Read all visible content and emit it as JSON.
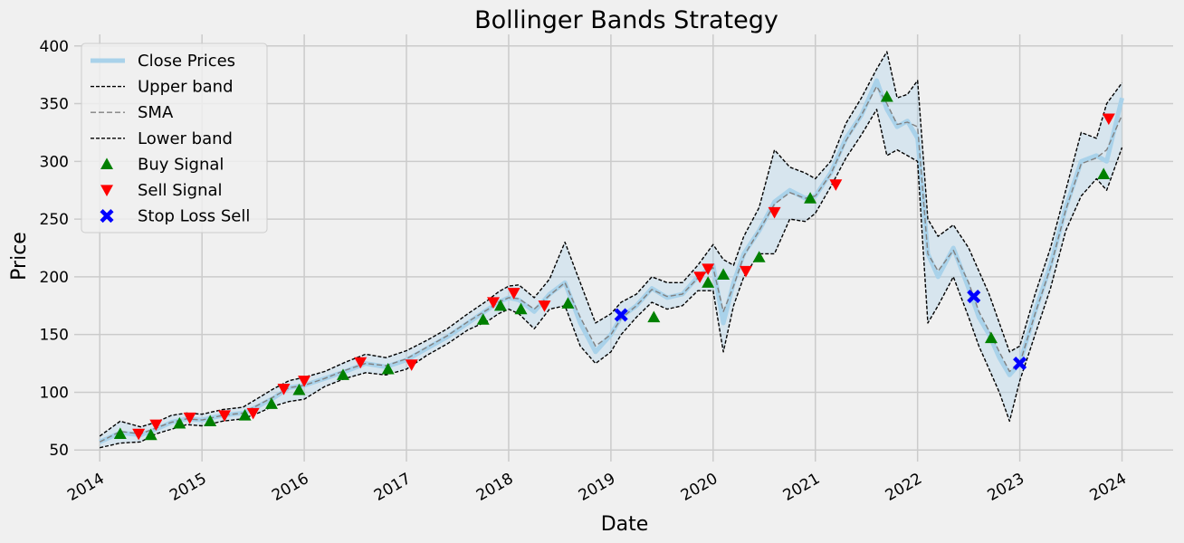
{
  "chart_data": {
    "type": "line",
    "title": "Bollinger Bands Strategy",
    "xlabel": "Date",
    "ylabel": "Price",
    "xlim": [
      2013.75,
      2024.5
    ],
    "ylim": [
      40,
      410
    ],
    "grid": true,
    "legend_position": "top-left",
    "x_ticks": [
      2014,
      2015,
      2016,
      2017,
      2018,
      2019,
      2020,
      2021,
      2022,
      2023,
      2024
    ],
    "x_tick_labels": [
      "2014",
      "2015",
      "2016",
      "2017",
      "2018",
      "2019",
      "2020",
      "2021",
      "2022",
      "2023",
      "2024"
    ],
    "y_ticks": [
      50,
      100,
      150,
      200,
      250,
      300,
      350,
      400
    ],
    "y_tick_labels": [
      "50",
      "100",
      "150",
      "200",
      "250",
      "300",
      "350",
      "400"
    ],
    "series": [
      {
        "name": "Close Prices",
        "color": "#a9d2ea",
        "x": [
          2014.0,
          2014.2,
          2014.4,
          2014.55,
          2014.7,
          2014.85,
          2015.0,
          2015.2,
          2015.4,
          2015.55,
          2015.7,
          2015.85,
          2016.0,
          2016.2,
          2016.4,
          2016.6,
          2016.8,
          2017.0,
          2017.2,
          2017.4,
          2017.6,
          2017.8,
          2017.9,
          2018.0,
          2018.1,
          2018.25,
          2018.4,
          2018.55,
          2018.7,
          2018.85,
          2019.0,
          2019.1,
          2019.25,
          2019.4,
          2019.55,
          2019.7,
          2019.85,
          2020.0,
          2020.1,
          2020.2,
          2020.3,
          2020.45,
          2020.6,
          2020.75,
          2020.9,
          2021.0,
          2021.15,
          2021.3,
          2021.45,
          2021.6,
          2021.7,
          2021.8,
          2021.9,
          2022.0,
          2022.1,
          2022.2,
          2022.35,
          2022.5,
          2022.6,
          2022.7,
          2022.8,
          2022.9,
          2023.0,
          2023.15,
          2023.3,
          2023.45,
          2023.6,
          2023.75,
          2023.85,
          2024.0
        ],
        "y": [
          57,
          65,
          63,
          68,
          74,
          77,
          76,
          80,
          82,
          88,
          95,
          104,
          106,
          112,
          118,
          125,
          122,
          128,
          138,
          148,
          160,
          172,
          178,
          182,
          180,
          170,
          185,
          195,
          160,
          135,
          150,
          165,
          175,
          190,
          182,
          185,
          200,
          210,
          160,
          195,
          220,
          240,
          265,
          275,
          268,
          270,
          290,
          320,
          340,
          370,
          345,
          330,
          335,
          320,
          220,
          200,
          225,
          190,
          165,
          150,
          130,
          115,
          125,
          170,
          210,
          260,
          300,
          305,
          300,
          355
        ]
      },
      {
        "name": "Upper band",
        "color": "#000000",
        "x": [
          2014.0,
          2014.2,
          2014.4,
          2014.55,
          2014.7,
          2014.85,
          2015.0,
          2015.2,
          2015.4,
          2015.55,
          2015.7,
          2015.85,
          2016.0,
          2016.2,
          2016.4,
          2016.6,
          2016.8,
          2017.0,
          2017.2,
          2017.4,
          2017.6,
          2017.8,
          2017.9,
          2018.0,
          2018.1,
          2018.25,
          2018.4,
          2018.55,
          2018.7,
          2018.85,
          2019.0,
          2019.1,
          2019.25,
          2019.4,
          2019.55,
          2019.7,
          2019.85,
          2020.0,
          2020.1,
          2020.2,
          2020.3,
          2020.45,
          2020.6,
          2020.75,
          2020.9,
          2021.0,
          2021.15,
          2021.3,
          2021.45,
          2021.6,
          2021.7,
          2021.8,
          2021.9,
          2022.0,
          2022.1,
          2022.2,
          2022.35,
          2022.5,
          2022.6,
          2022.7,
          2022.8,
          2022.9,
          2023.0,
          2023.15,
          2023.3,
          2023.45,
          2023.6,
          2023.75,
          2023.85,
          2024.0
        ],
        "y": [
          62,
          75,
          70,
          74,
          80,
          82,
          81,
          85,
          87,
          95,
          103,
          110,
          113,
          118,
          126,
          133,
          130,
          136,
          145,
          155,
          168,
          180,
          187,
          192,
          193,
          182,
          198,
          230,
          195,
          160,
          168,
          178,
          185,
          200,
          195,
          195,
          210,
          228,
          215,
          210,
          235,
          260,
          310,
          295,
          290,
          285,
          300,
          333,
          355,
          380,
          395,
          355,
          358,
          370,
          250,
          235,
          245,
          225,
          205,
          185,
          160,
          135,
          140,
          185,
          225,
          275,
          325,
          320,
          350,
          368
        ]
      },
      {
        "name": "SMA",
        "color": "#808080",
        "x": [
          2014.0,
          2014.2,
          2014.4,
          2014.55,
          2014.7,
          2014.85,
          2015.0,
          2015.2,
          2015.4,
          2015.55,
          2015.7,
          2015.85,
          2016.0,
          2016.2,
          2016.4,
          2016.6,
          2016.8,
          2017.0,
          2017.2,
          2017.4,
          2017.6,
          2017.8,
          2017.9,
          2018.0,
          2018.1,
          2018.25,
          2018.4,
          2018.55,
          2018.7,
          2018.85,
          2019.0,
          2019.1,
          2019.25,
          2019.4,
          2019.55,
          2019.7,
          2019.85,
          2020.0,
          2020.1,
          2020.2,
          2020.3,
          2020.45,
          2020.6,
          2020.75,
          2020.9,
          2021.0,
          2021.15,
          2021.3,
          2021.45,
          2021.6,
          2021.7,
          2021.8,
          2021.9,
          2022.0,
          2022.1,
          2022.2,
          2022.35,
          2022.5,
          2022.6,
          2022.7,
          2022.8,
          2022.9,
          2023.0,
          2023.15,
          2023.3,
          2023.45,
          2023.6,
          2023.75,
          2023.85,
          2024.0
        ],
        "y": [
          57,
          66,
          64,
          69,
          74,
          77,
          76,
          80,
          82,
          89,
          96,
          104,
          106,
          112,
          119,
          125,
          123,
          129,
          139,
          149,
          161,
          172,
          178,
          182,
          181,
          172,
          184,
          195,
          165,
          140,
          150,
          164,
          175,
          189,
          183,
          185,
          199,
          208,
          170,
          192,
          218,
          240,
          263,
          273,
          268,
          270,
          289,
          318,
          340,
          365,
          350,
          332,
          334,
          330,
          220,
          205,
          223,
          195,
          170,
          153,
          135,
          118,
          125,
          168,
          208,
          258,
          298,
          303,
          310,
          340
        ]
      },
      {
        "name": "Lower band",
        "color": "#000000",
        "x": [
          2014.0,
          2014.2,
          2014.4,
          2014.55,
          2014.7,
          2014.85,
          2015.0,
          2015.2,
          2015.4,
          2015.55,
          2015.7,
          2015.85,
          2016.0,
          2016.2,
          2016.4,
          2016.6,
          2016.8,
          2017.0,
          2017.2,
          2017.4,
          2017.6,
          2017.8,
          2017.9,
          2018.0,
          2018.1,
          2018.25,
          2018.4,
          2018.55,
          2018.7,
          2018.85,
          2019.0,
          2019.1,
          2019.25,
          2019.4,
          2019.55,
          2019.7,
          2019.85,
          2020.0,
          2020.1,
          2020.2,
          2020.3,
          2020.45,
          2020.6,
          2020.75,
          2020.9,
          2021.0,
          2021.15,
          2021.3,
          2021.45,
          2021.6,
          2021.7,
          2021.8,
          2021.9,
          2022.0,
          2022.1,
          2022.2,
          2022.35,
          2022.5,
          2022.6,
          2022.7,
          2022.8,
          2022.9,
          2023.0,
          2023.15,
          2023.3,
          2023.45,
          2023.6,
          2023.75,
          2023.85,
          2024.0
        ],
        "y": [
          52,
          56,
          57,
          64,
          68,
          72,
          71,
          75,
          77,
          82,
          88,
          92,
          94,
          105,
          112,
          117,
          115,
          120,
          132,
          142,
          154,
          162,
          168,
          172,
          168,
          155,
          172,
          175,
          140,
          125,
          135,
          150,
          165,
          178,
          172,
          175,
          188,
          188,
          135,
          175,
          200,
          220,
          220,
          250,
          248,
          255,
          278,
          303,
          323,
          345,
          305,
          310,
          305,
          300,
          160,
          175,
          200,
          165,
          140,
          120,
          100,
          75,
          110,
          150,
          190,
          240,
          270,
          285,
          275,
          312
        ]
      },
      {
        "name": "Buy Signal",
        "color": "#008000",
        "marker": "triangle-up",
        "x": [
          2014.2,
          2014.5,
          2014.78,
          2015.08,
          2015.42,
          2015.68,
          2015.95,
          2016.38,
          2016.82,
          2017.75,
          2017.92,
          2018.12,
          2018.58,
          2019.42,
          2019.95,
          2020.1,
          2020.45,
          2020.95,
          2021.7,
          2022.72,
          2023.82
        ],
        "y": [
          64,
          63,
          73,
          75,
          80,
          90,
          102,
          115,
          120,
          163,
          175,
          172,
          177,
          165,
          195,
          202,
          217,
          268,
          356,
          147,
          289
        ]
      },
      {
        "name": "Sell Signal",
        "color": "#ff0000",
        "marker": "triangle-down",
        "x": [
          2014.38,
          2014.55,
          2014.88,
          2015.22,
          2015.5,
          2015.8,
          2016.0,
          2016.55,
          2017.05,
          2017.85,
          2018.05,
          2018.35,
          2019.87,
          2019.95,
          2020.32,
          2020.6,
          2021.2,
          2023.87
        ],
        "y": [
          64,
          72,
          78,
          80,
          82,
          103,
          110,
          126,
          124,
          178,
          186,
          175,
          200,
          207,
          205,
          256,
          280,
          337
        ]
      },
      {
        "name": "Stop Loss Sell",
        "color": "#0000ff",
        "marker": "x",
        "x": [
          2019.1,
          2022.55,
          2023.0
        ],
        "y": [
          167,
          183,
          125
        ]
      }
    ]
  }
}
